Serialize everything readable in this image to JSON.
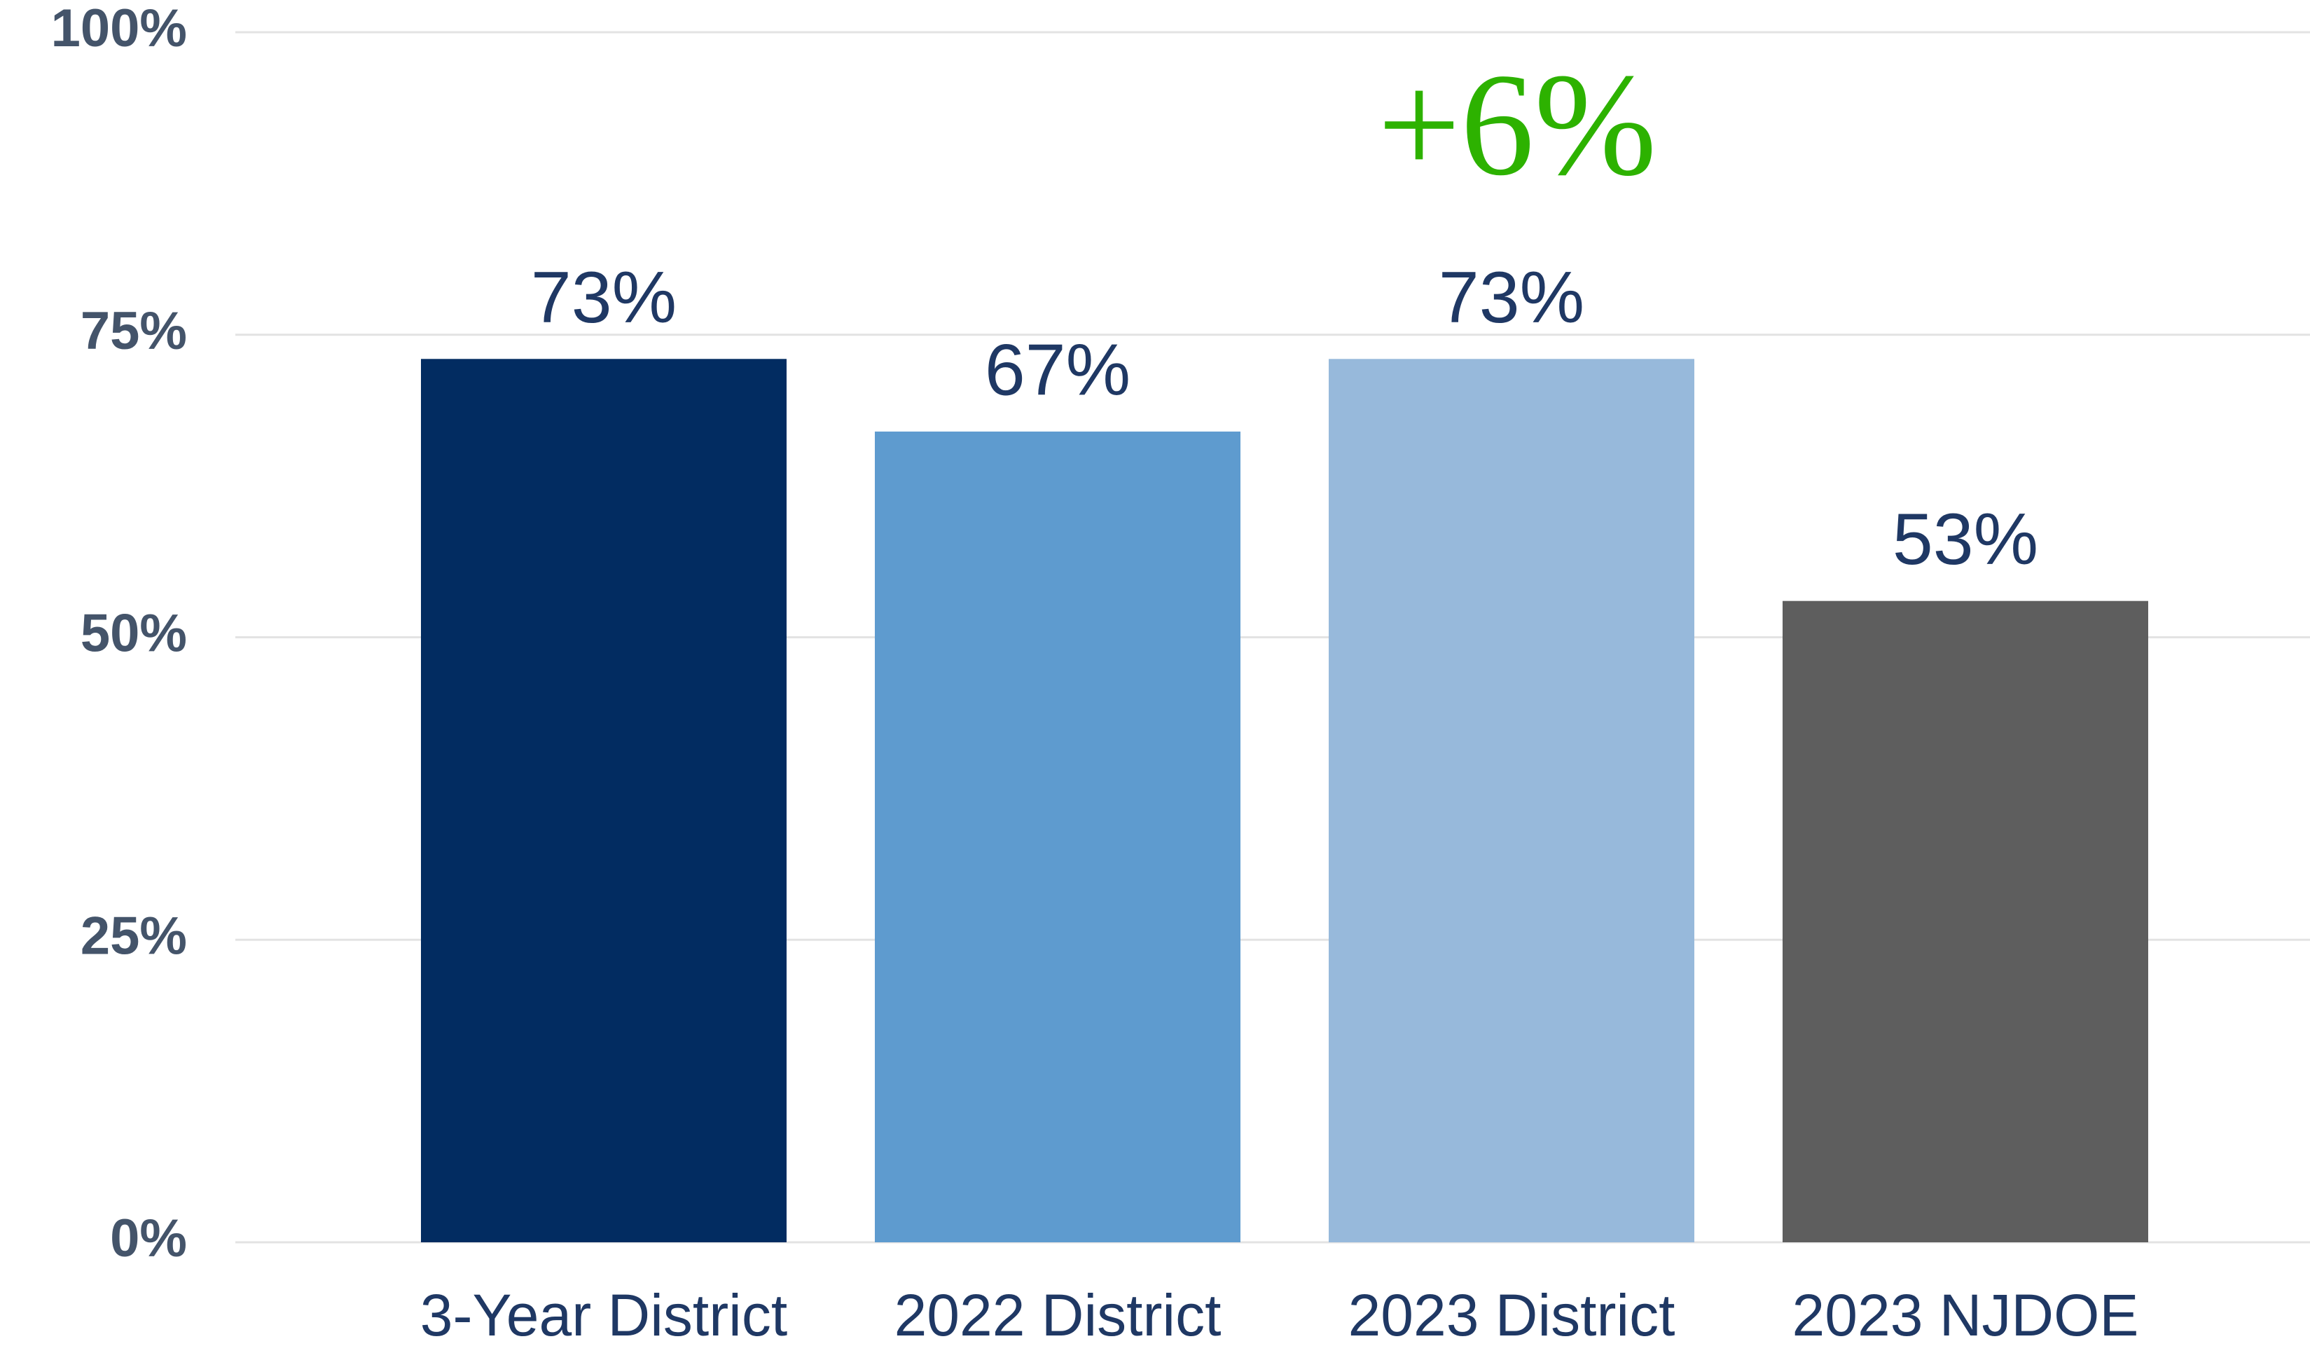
{
  "chart_data": {
    "type": "bar",
    "categories": [
      "3-Year District",
      "2022 District",
      "2023 District",
      "2023 NJDOE"
    ],
    "values": [
      73,
      67,
      73,
      53
    ],
    "value_labels": [
      "73%",
      "67%",
      "73%",
      "53%"
    ],
    "colors": [
      "#022c61",
      "#5e9bcf",
      "#97b9db",
      "#5e5e5e"
    ],
    "annotation": "+6%",
    "ylim": [
      0,
      100
    ],
    "yticks": [
      {
        "value": 0,
        "label": "0%"
      },
      {
        "value": 25,
        "label": "25%"
      },
      {
        "value": 50,
        "label": "50%"
      },
      {
        "value": 75,
        "label": "75%"
      },
      {
        "value": 100,
        "label": "100%"
      }
    ],
    "grid": true
  }
}
